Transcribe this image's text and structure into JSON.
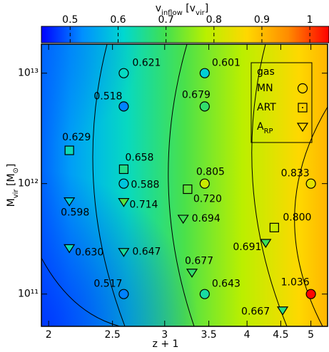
{
  "chart_data": {
    "type": "scatter",
    "xlabel": "z + 1",
    "ylabel": [
      "M",
      "vir",
      " [M",
      "⊙",
      "]"
    ],
    "colorbar": {
      "label": [
        "v",
        "inflow",
        " [v",
        "vir",
        "]"
      ],
      "clim": [
        0.44,
        1.04
      ],
      "ticks": [
        0.5,
        0.6,
        0.7,
        0.8,
        0.9,
        1
      ],
      "colormap": [
        "#0000ff",
        "#0090ff",
        "#00d8d0",
        "#40e050",
        "#b8f000",
        "#ffd800",
        "#ff8c00",
        "#ff0000"
      ]
    },
    "xscale": "log",
    "yscale": "log",
    "xlim": [
      1.95,
      5.3
    ],
    "xticks": [
      2,
      2.5,
      3,
      3.5,
      4,
      4.5,
      5
    ],
    "ylim": [
      51000000000,
      18300000000000
    ],
    "yticks": [
      {
        "value": 100000000000,
        "label": "10¹¹"
      },
      {
        "value": 1000000000000,
        "label": "10¹²"
      },
      {
        "value": 10000000000000,
        "label": "10¹³"
      }
    ],
    "legend": {
      "title": "gas",
      "position": "upper right"
    },
    "series": [
      {
        "name": "MN",
        "marker": "circle",
        "x": [
          2.6,
          2.6,
          2.6,
          2.6,
          3.45,
          3.45,
          3.45,
          3.45,
          5,
          5
        ],
        "values": [
          10000000000000,
          5000000000000,
          1000000000000,
          100000000000,
          10000000000000,
          5000000000000,
          1000000000000,
          100000000000,
          1000000000000,
          100000000000
        ],
        "v": [
          0.621,
          0.518,
          0.588,
          0.517,
          0.601,
          0.679,
          0.805,
          0.643,
          0.833,
          1.036
        ],
        "value_labels": [
          "0.621",
          "0.518",
          "0.588",
          "0.517",
          "0.601",
          "0.679",
          "0.805",
          "0.643",
          "0.833",
          "1.036"
        ]
      },
      {
        "name": "ART",
        "marker": "square",
        "x": [
          2.15,
          2.6,
          3.25,
          4.4
        ],
        "values": [
          2000000000000,
          1350000000000,
          890000000000,
          400000000000
        ],
        "v": [
          0.629,
          0.658,
          0.72,
          0.8
        ],
        "value_labels": [
          "0.629",
          "0.658",
          "0.720",
          "0.800"
        ]
      },
      {
        "name": "A",
        "name_sub": "RP",
        "marker": "triangle",
        "x": [
          2.15,
          2.15,
          2.6,
          2.6,
          3.2,
          3.3,
          4.27,
          4.53
        ],
        "values": [
          690000000000,
          260000000000,
          680000000000,
          240000000000,
          480000000000,
          156000000000,
          290000000000,
          71000000000
        ],
        "v": [
          0.598,
          0.63,
          0.714,
          0.647,
          0.694,
          0.677,
          0.691,
          0.667
        ],
        "value_labels": [
          "0.598",
          "0.630",
          "0.714",
          "0.647",
          "0.694",
          "0.677",
          "0.691",
          "0.667"
        ]
      }
    ]
  }
}
